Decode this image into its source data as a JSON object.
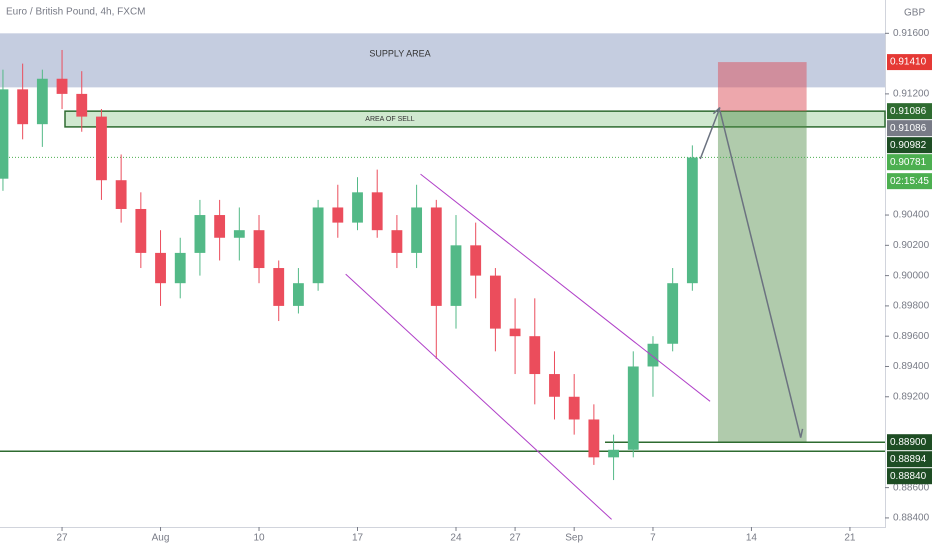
{
  "chart_data": {
    "type": "candlestick",
    "title": "Euro / British Pound, 4h, FXCM",
    "currency": "GBP",
    "up_color": "#53b987",
    "down_color": "#eb4d5c",
    "x": [
      -3,
      -2,
      -1,
      0,
      1,
      2,
      3,
      4,
      5,
      6,
      7,
      8,
      9,
      10,
      11,
      12,
      13,
      14,
      15,
      16,
      17,
      18,
      19,
      20,
      21,
      22,
      23,
      24,
      25,
      26,
      27,
      28,
      29,
      30,
      31,
      32
    ],
    "open": [
      0.9064,
      0.9123,
      0.91,
      0.913,
      0.912,
      0.9105,
      0.9063,
      0.9044,
      0.9015,
      0.8995,
      0.9015,
      0.904,
      0.9025,
      0.903,
      0.9005,
      0.898,
      0.8995,
      0.9045,
      0.9035,
      0.9055,
      0.903,
      0.9015,
      0.9045,
      0.898,
      0.902,
      0.9,
      0.8965,
      0.896,
      0.8935,
      0.892,
      0.8905,
      0.888,
      0.8885,
      0.894,
      0.8955,
      0.8995
    ],
    "high": [
      0.9136,
      0.914,
      0.9136,
      0.9149,
      0.9135,
      0.911,
      0.908,
      0.9055,
      0.903,
      0.9025,
      0.905,
      0.905,
      0.9045,
      0.904,
      0.901,
      0.9005,
      0.905,
      0.906,
      0.9065,
      0.907,
      0.904,
      0.906,
      0.905,
      0.904,
      0.9035,
      0.9005,
      0.8985,
      0.8985,
      0.895,
      0.8935,
      0.8915,
      0.8895,
      0.895,
      0.896,
      0.9005,
      0.9086
    ],
    "low": [
      0.9056,
      0.909,
      0.9085,
      0.911,
      0.9095,
      0.905,
      0.9035,
      0.9005,
      0.898,
      0.8985,
      0.9,
      0.901,
      0.901,
      0.8995,
      0.897,
      0.8975,
      0.899,
      0.9025,
      0.903,
      0.9025,
      0.9005,
      0.9005,
      0.8945,
      0.8965,
      0.8985,
      0.895,
      0.8935,
      0.8915,
      0.8905,
      0.8895,
      0.8875,
      0.8865,
      0.888,
      0.892,
      0.895,
      0.899
    ],
    "close": [
      0.9123,
      0.91,
      0.913,
      0.912,
      0.9105,
      0.9063,
      0.9044,
      0.9015,
      0.8995,
      0.9015,
      0.904,
      0.9025,
      0.903,
      0.9005,
      0.898,
      0.8995,
      0.9045,
      0.9035,
      0.9055,
      0.903,
      0.9015,
      0.9045,
      0.898,
      0.902,
      0.9,
      0.8965,
      0.896,
      0.8935,
      0.892,
      0.8905,
      0.888,
      0.8885,
      0.894,
      0.8955,
      0.8995,
      0.9078
    ],
    "xlim": [
      -3.15,
      41.78
    ],
    "xticks": [
      {
        "value": 0,
        "label": "27"
      },
      {
        "value": 5,
        "label": "Aug"
      },
      {
        "value": 10,
        "label": "10"
      },
      {
        "value": 15,
        "label": "17"
      },
      {
        "value": 20,
        "label": "24"
      },
      {
        "value": 23,
        "label": "27"
      },
      {
        "value": 26,
        "label": "Sep"
      },
      {
        "value": 30,
        "label": "7"
      },
      {
        "value": 35,
        "label": "14"
      },
      {
        "value": 40,
        "label": "21"
      }
    ],
    "ylim": [
      0.8834,
      0.9182
    ],
    "yticks": [
      {
        "value": 0.916,
        "label": "0.91600"
      },
      {
        "value": 0.912,
        "label": "0.91200"
      },
      {
        "value": 0.904,
        "label": "0.90400"
      },
      {
        "value": 0.902,
        "label": "0.90200"
      },
      {
        "value": 0.9,
        "label": "0.90000"
      },
      {
        "value": 0.898,
        "label": "0.89800"
      },
      {
        "value": 0.896,
        "label": "0.89600"
      },
      {
        "value": 0.894,
        "label": "0.89400"
      },
      {
        "value": 0.892,
        "label": "0.89200"
      },
      {
        "value": 0.886,
        "label": "0.88600"
      },
      {
        "value": 0.884,
        "label": "0.88400"
      }
    ],
    "price_labels": [
      {
        "value": 0.9141,
        "label": "0.91410",
        "color": "#e53935"
      },
      {
        "value": 0.91086,
        "label": "0.91086",
        "color": "#2e6b30"
      },
      {
        "value": 0.91086,
        "label": "0.91086",
        "color": "#787b86"
      },
      {
        "value": 0.90982,
        "label": "0.90982",
        "color": "#1e4d24"
      },
      {
        "value": 0.90781,
        "label": "0.90781",
        "color": "#4caf50"
      },
      {
        "label": "02:15:45",
        "color": "#4caf50"
      },
      {
        "value": 0.889,
        "label": "0.88900",
        "color": "#1e4d24"
      },
      {
        "value": 0.88894,
        "label": "0.88894",
        "color": "#1e4d24"
      },
      {
        "value": 0.8884,
        "label": "0.88840",
        "color": "#1e4d24"
      }
    ],
    "supply_area": {
      "label": "SUPPLY AREA",
      "range": [
        0.91243,
        0.916
      ]
    },
    "sell_area": {
      "label": "AREA OF SELL"
    },
    "position": {
      "x": [
        33.3,
        37.8
      ]
    },
    "channel": [
      {
        "x": [
          18.2,
          32.9
        ],
        "y": [
          0.9067,
          0.8917
        ]
      },
      {
        "x": [
          14.4,
          27.9
        ],
        "y": [
          0.9001,
          0.8839
        ]
      }
    ],
    "arrows": [
      {
        "x": [
          32.4,
          33.4
        ],
        "y": [
          0.9077,
          0.9111
        ]
      },
      {
        "x": [
          33.4,
          37.5
        ],
        "y": [
          0.9109,
          0.8893
        ]
      }
    ]
  }
}
